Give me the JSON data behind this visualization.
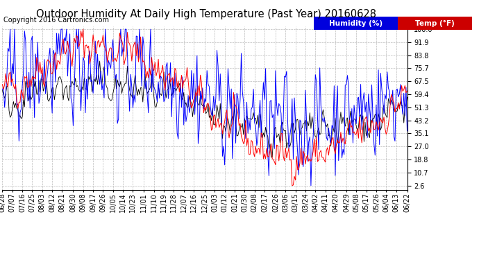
{
  "title": "Outdoor Humidity At Daily High Temperature (Past Year) 20160628",
  "copyright": "Copyright 2016 Cartronics.com",
  "legend_humidity": "Humidity (%)",
  "legend_temp": "Temp (°F)",
  "legend_humidity_bg": "#0000dd",
  "legend_temp_bg": "#cc0000",
  "humidity_color": "#0000ff",
  "temp_color": "#ff0000",
  "black_color": "#000000",
  "bg_color": "#ffffff",
  "plot_bg_color": "#ffffff",
  "grid_color": "#bbbbbb",
  "yticks": [
    2.6,
    10.7,
    18.8,
    27.0,
    35.1,
    43.2,
    51.3,
    59.4,
    67.5,
    75.7,
    83.8,
    91.9,
    100.0
  ],
  "ylim": [
    0.0,
    102.0
  ],
  "title_fontsize": 10.5,
  "tick_fontsize": 7,
  "copyright_fontsize": 7,
  "legend_fontsize": 7.5,
  "xtick_labels": [
    "06/28",
    "07/07",
    "07/16",
    "07/25",
    "08/03",
    "08/12",
    "08/21",
    "08/30",
    "09/08",
    "09/17",
    "09/26",
    "10/05",
    "10/14",
    "10/23",
    "11/01",
    "11/10",
    "11/19",
    "11/28",
    "12/07",
    "12/16",
    "12/25",
    "01/03",
    "01/12",
    "01/21",
    "01/30",
    "02/08",
    "02/17",
    "02/26",
    "03/06",
    "03/15",
    "03/24",
    "04/02",
    "04/11",
    "04/20",
    "04/29",
    "05/08",
    "05/17",
    "05/26",
    "06/04",
    "06/13",
    "06/22"
  ]
}
